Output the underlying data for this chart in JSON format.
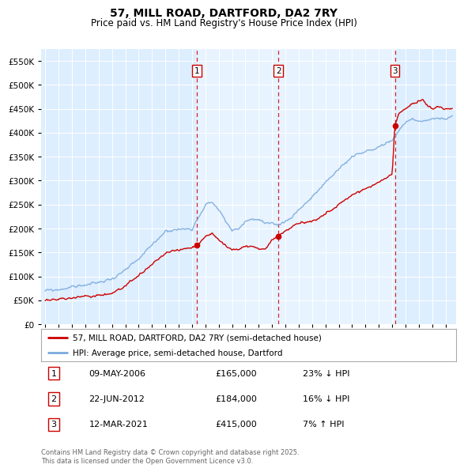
{
  "title": "57, MILL ROAD, DARTFORD, DA2 7RY",
  "subtitle": "Price paid vs. HM Land Registry's House Price Index (HPI)",
  "legend_line1": "57, MILL ROAD, DARTFORD, DA2 7RY (semi-detached house)",
  "legend_line2": "HPI: Average price, semi-detached house, Dartford",
  "sale_color": "#cc0000",
  "hpi_color": "#7aaadd",
  "vline_color": "#cc0000",
  "background_color": "#ddeeff",
  "highlight_color": "#e8f2fc",
  "sales": [
    {
      "date": 2006.36,
      "price": 165000,
      "label": "1"
    },
    {
      "date": 2012.48,
      "price": 184000,
      "label": "2"
    },
    {
      "date": 2021.2,
      "price": 415000,
      "label": "3"
    }
  ],
  "sale_annotations": [
    {
      "num": "1",
      "date": "09-MAY-2006",
      "price": "£165,000",
      "pct": "23% ↓ HPI"
    },
    {
      "num": "2",
      "date": "22-JUN-2012",
      "price": "£184,000",
      "pct": "16% ↓ HPI"
    },
    {
      "num": "3",
      "date": "12-MAR-2021",
      "price": "£415,000",
      "pct": "7% ↑ HPI"
    }
  ],
  "footnote": "Contains HM Land Registry data © Crown copyright and database right 2025.\nThis data is licensed under the Open Government Licence v3.0.",
  "ylim": [
    0,
    575000
  ],
  "yticks": [
    0,
    50000,
    100000,
    150000,
    200000,
    250000,
    300000,
    350000,
    400000,
    450000,
    500000,
    550000
  ],
  "xlim_start": 1994.7,
  "xlim_end": 2025.8
}
